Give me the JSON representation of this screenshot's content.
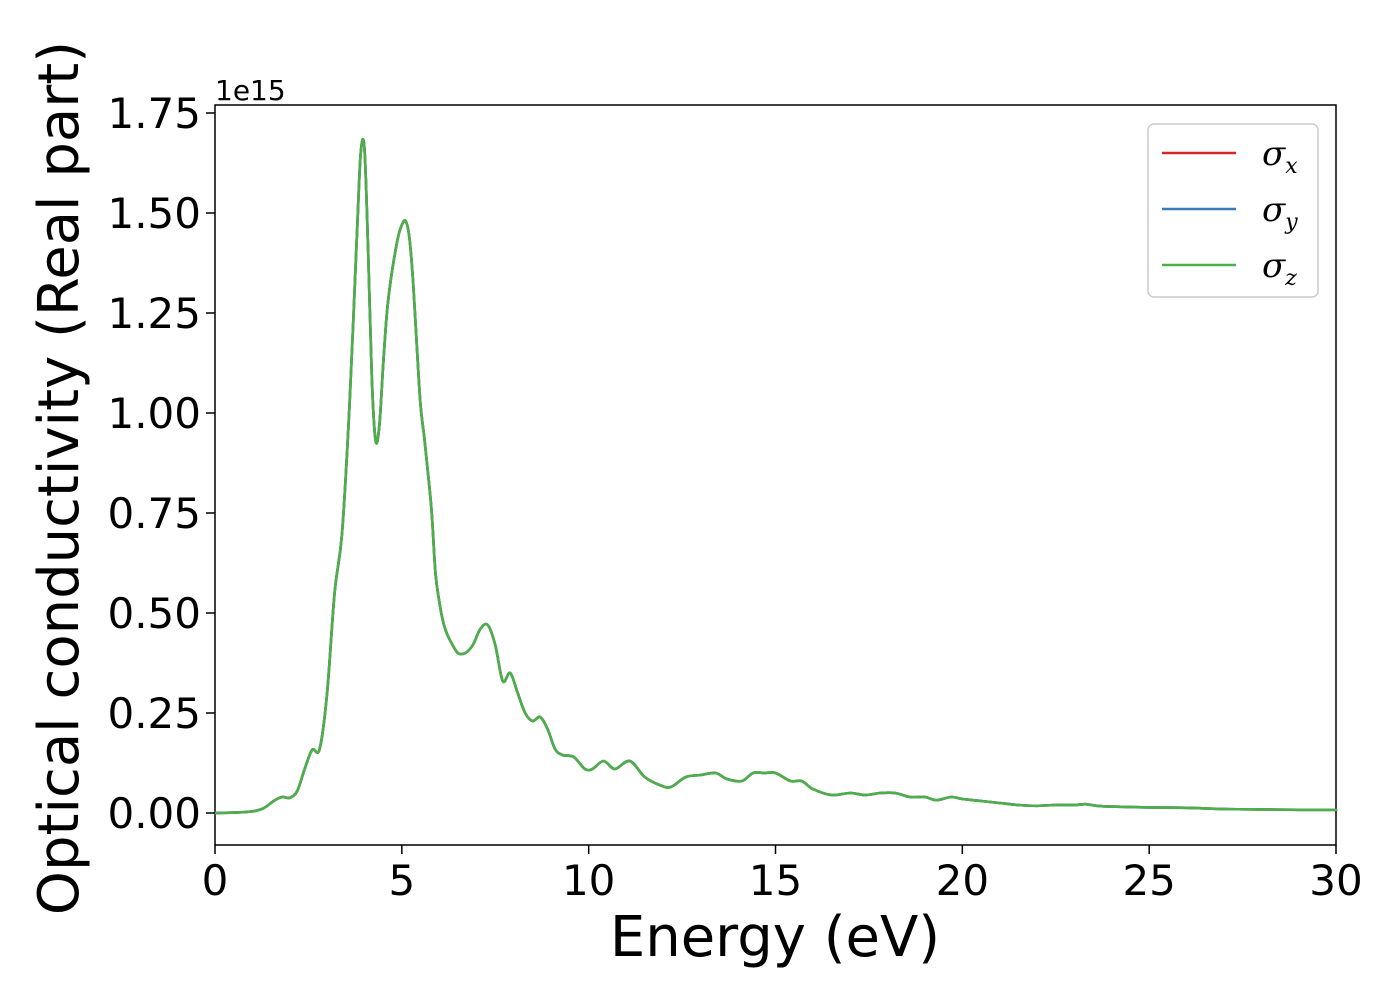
{
  "chart_data": {
    "type": "line",
    "xlabel": "Energy (eV)",
    "ylabel": "Optical conductivity (Real part)",
    "y_offset_label": "1e15",
    "y_multiplier": 1000000000000000.0,
    "xlim": [
      0,
      30
    ],
    "ylim": [
      -0.08,
      1.77
    ],
    "x_ticks": [
      0,
      5,
      10,
      15,
      20,
      25,
      30
    ],
    "x_tick_labels": [
      "0",
      "5",
      "10",
      "15",
      "20",
      "25",
      "30"
    ],
    "y_ticks": [
      0.0,
      0.25,
      0.5,
      0.75,
      1.0,
      1.25,
      1.5,
      1.75
    ],
    "y_tick_labels": [
      "0.00",
      "0.25",
      "0.50",
      "0.75",
      "1.00",
      "1.25",
      "1.50",
      "1.75"
    ],
    "grid": false,
    "legend_position": "top-right",
    "x": [
      0,
      0.5,
      1.0,
      1.3,
      1.6,
      1.8,
      2.0,
      2.2,
      2.4,
      2.6,
      2.8,
      3.0,
      3.2,
      3.4,
      3.6,
      3.8,
      3.9,
      4.0,
      4.1,
      4.2,
      4.3,
      4.4,
      4.5,
      4.6,
      4.7,
      4.8,
      4.9,
      5.0,
      5.1,
      5.2,
      5.3,
      5.4,
      5.5,
      5.6,
      5.7,
      5.8,
      5.9,
      6.0,
      6.1,
      6.2,
      6.3,
      6.5,
      6.7,
      6.9,
      7.1,
      7.3,
      7.5,
      7.7,
      7.9,
      8.1,
      8.3,
      8.5,
      8.7,
      8.9,
      9.1,
      9.3,
      9.6,
      9.9,
      10.1,
      10.4,
      10.7,
      11.1,
      11.5,
      11.9,
      12.2,
      12.6,
      13.0,
      13.4,
      13.7,
      14.1,
      14.4,
      14.7,
      15.0,
      15.4,
      15.7,
      16.0,
      16.5,
      17.0,
      17.4,
      17.8,
      18.2,
      18.6,
      19.0,
      19.3,
      19.7,
      20.0,
      20.5,
      21.0,
      21.5,
      22.0,
      22.5,
      23.0,
      23.3,
      23.6,
      24.0,
      25.0,
      26.0,
      27.0,
      28.0,
      29.0,
      30.0
    ],
    "series": [
      {
        "name": "σx",
        "color": "#d62728",
        "values": [
          0.0,
          0.001,
          0.004,
          0.012,
          0.032,
          0.04,
          0.038,
          0.055,
          0.11,
          0.158,
          0.16,
          0.3,
          0.55,
          0.7,
          1.02,
          1.45,
          1.65,
          1.66,
          1.4,
          1.08,
          0.93,
          0.97,
          1.12,
          1.25,
          1.33,
          1.39,
          1.44,
          1.47,
          1.48,
          1.44,
          1.33,
          1.17,
          1.02,
          0.94,
          0.85,
          0.75,
          0.6,
          0.53,
          0.48,
          0.45,
          0.43,
          0.4,
          0.4,
          0.42,
          0.46,
          0.47,
          0.42,
          0.33,
          0.35,
          0.3,
          0.25,
          0.23,
          0.24,
          0.21,
          0.16,
          0.145,
          0.14,
          0.11,
          0.11,
          0.13,
          0.11,
          0.13,
          0.09,
          0.07,
          0.065,
          0.09,
          0.095,
          0.1,
          0.085,
          0.08,
          0.1,
          0.1,
          0.1,
          0.08,
          0.08,
          0.06,
          0.045,
          0.05,
          0.045,
          0.05,
          0.05,
          0.04,
          0.04,
          0.032,
          0.04,
          0.035,
          0.03,
          0.025,
          0.02,
          0.018,
          0.02,
          0.02,
          0.022,
          0.018,
          0.016,
          0.014,
          0.013,
          0.01,
          0.009,
          0.008,
          0.008
        ]
      },
      {
        "name": "σy",
        "color": "#3a7ab5",
        "values": [
          0.0,
          0.001,
          0.004,
          0.012,
          0.032,
          0.04,
          0.038,
          0.055,
          0.11,
          0.158,
          0.16,
          0.3,
          0.55,
          0.7,
          1.02,
          1.45,
          1.65,
          1.66,
          1.4,
          1.08,
          0.93,
          0.97,
          1.12,
          1.25,
          1.33,
          1.39,
          1.44,
          1.47,
          1.48,
          1.44,
          1.33,
          1.17,
          1.02,
          0.94,
          0.85,
          0.75,
          0.6,
          0.53,
          0.48,
          0.45,
          0.43,
          0.4,
          0.4,
          0.42,
          0.46,
          0.47,
          0.42,
          0.33,
          0.35,
          0.3,
          0.25,
          0.23,
          0.24,
          0.21,
          0.16,
          0.145,
          0.14,
          0.11,
          0.11,
          0.13,
          0.11,
          0.13,
          0.09,
          0.07,
          0.065,
          0.09,
          0.095,
          0.1,
          0.085,
          0.08,
          0.1,
          0.1,
          0.1,
          0.08,
          0.08,
          0.06,
          0.045,
          0.05,
          0.045,
          0.05,
          0.05,
          0.04,
          0.04,
          0.032,
          0.04,
          0.035,
          0.03,
          0.025,
          0.02,
          0.018,
          0.02,
          0.02,
          0.022,
          0.018,
          0.016,
          0.014,
          0.013,
          0.01,
          0.009,
          0.008,
          0.008
        ]
      },
      {
        "name": "σz",
        "color": "#4daf4a",
        "values": [
          0.0,
          0.001,
          0.004,
          0.012,
          0.032,
          0.04,
          0.038,
          0.055,
          0.11,
          0.158,
          0.16,
          0.3,
          0.55,
          0.7,
          1.02,
          1.45,
          1.65,
          1.66,
          1.4,
          1.08,
          0.93,
          0.97,
          1.12,
          1.25,
          1.33,
          1.39,
          1.44,
          1.47,
          1.48,
          1.44,
          1.33,
          1.17,
          1.02,
          0.94,
          0.85,
          0.75,
          0.6,
          0.53,
          0.48,
          0.45,
          0.43,
          0.4,
          0.4,
          0.42,
          0.46,
          0.47,
          0.42,
          0.33,
          0.35,
          0.3,
          0.25,
          0.23,
          0.24,
          0.21,
          0.16,
          0.145,
          0.14,
          0.11,
          0.11,
          0.13,
          0.11,
          0.13,
          0.09,
          0.07,
          0.065,
          0.09,
          0.095,
          0.1,
          0.085,
          0.08,
          0.1,
          0.1,
          0.1,
          0.08,
          0.08,
          0.06,
          0.045,
          0.05,
          0.045,
          0.05,
          0.05,
          0.04,
          0.04,
          0.032,
          0.04,
          0.035,
          0.03,
          0.025,
          0.02,
          0.018,
          0.02,
          0.02,
          0.022,
          0.018,
          0.016,
          0.014,
          0.013,
          0.01,
          0.009,
          0.008,
          0.008
        ]
      }
    ],
    "legend": [
      {
        "symbol": "σ",
        "subscript": "x",
        "color": "#d62728"
      },
      {
        "symbol": "σ",
        "subscript": "y",
        "color": "#3a7ab5"
      },
      {
        "symbol": "σ",
        "subscript": "z",
        "color": "#4daf4a"
      }
    ]
  }
}
